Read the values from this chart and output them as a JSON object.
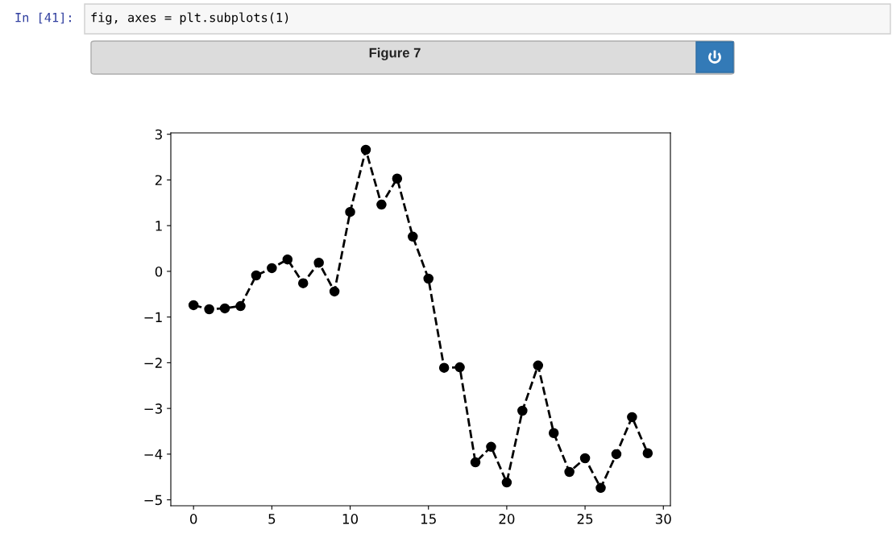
{
  "chart_data": {
    "type": "line",
    "annotations": [
      "In [41]:",
      "fig, axes = plt.subplots(1)",
      "Figure 7"
    ],
    "x": [
      0,
      1,
      2,
      3,
      4,
      5,
      6,
      7,
      8,
      9,
      10,
      11,
      12,
      13,
      14,
      15,
      16,
      17,
      18,
      19,
      20,
      21,
      22,
      23,
      24,
      25,
      26,
      27,
      28,
      29
    ],
    "series": [
      {
        "color": "#000000",
        "values": [
          -0.74,
          -0.83,
          -0.81,
          -0.76,
          -0.09,
          0.07,
          0.26,
          -0.26,
          0.19,
          -0.44,
          1.3,
          2.66,
          1.46,
          2.03,
          0.76,
          -0.16,
          -2.11,
          -2.1,
          -4.18,
          -3.84,
          -4.62,
          -3.05,
          -2.06,
          -3.54,
          -4.39,
          -4.09,
          -4.74,
          -4.0,
          -3.19,
          -3.98
        ]
      }
    ],
    "xlim": [
      -1.45,
      30.45
    ],
    "xticks": [
      0,
      5,
      10,
      15,
      20,
      25,
      30
    ],
    "ylim": [
      -5.13,
      3.03
    ],
    "yticks": [
      -5,
      -4,
      -3,
      -2,
      -1,
      0,
      1,
      2,
      3
    ],
    "marker": "circle",
    "line_style": "dashed",
    "grid": false,
    "legend": false
  }
}
